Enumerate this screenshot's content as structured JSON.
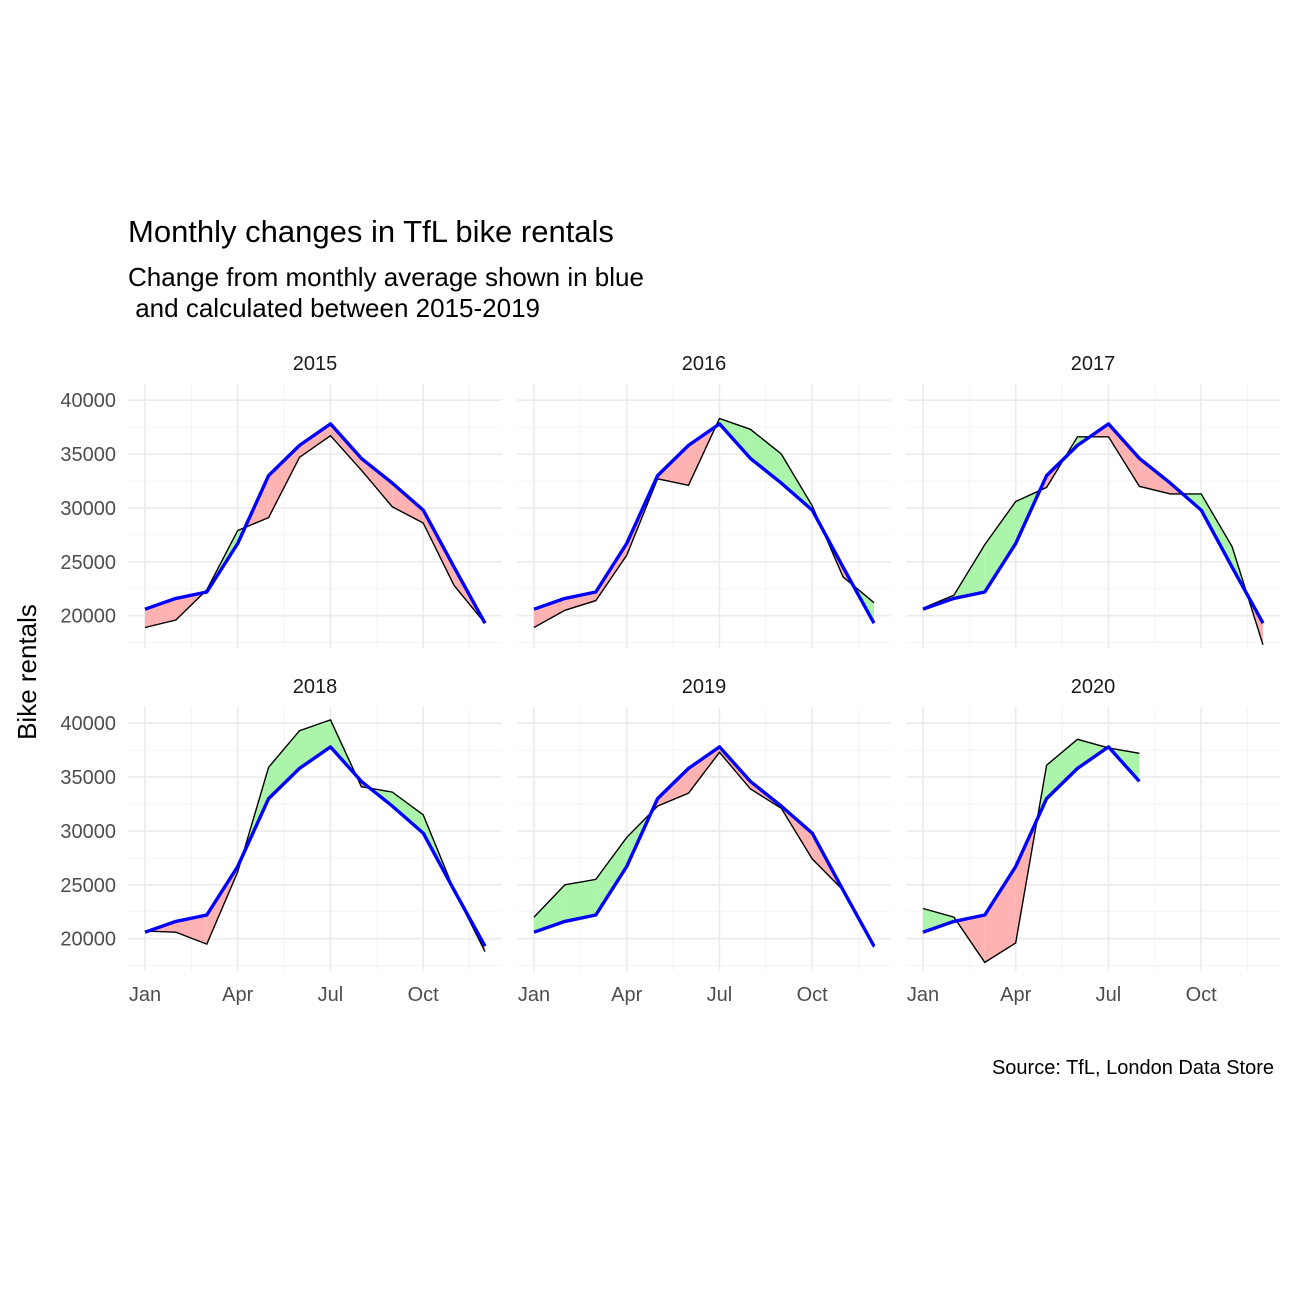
{
  "chart_data": {
    "type": "line",
    "title": "Monthly changes in TfL bike rentals",
    "subtitle": [
      "Change from monthly average shown in blue",
      " and calculated between 2015-2019"
    ],
    "ylabel": "Bike rentals",
    "xlabel": "",
    "caption": "Source: TfL, London Data Store",
    "x_ticks": [
      "Jan",
      "Apr",
      "Jul",
      "Oct"
    ],
    "x_tick_months": [
      1,
      4,
      7,
      10
    ],
    "y_ticks": [
      20000,
      25000,
      30000,
      35000,
      40000
    ],
    "xlim": [
      1,
      12
    ],
    "ylim": [
      17000,
      41500
    ],
    "grid": true,
    "colors": {
      "average_line": "#0000ff",
      "above_average_fill": "#aaf5aa",
      "below_average_fill": "#ffb2b2",
      "actual_line": "#000000"
    },
    "monthly_average": [
      20600,
      21600,
      22200,
      26700,
      33000,
      35800,
      37800,
      34600,
      32300,
      29800,
      24500,
      19300
    ],
    "facets": [
      {
        "year": "2015",
        "values": [
          18900,
          19600,
          22400,
          27900,
          29100,
          34700,
          36700,
          33500,
          30100,
          28600,
          22800,
          19300
        ]
      },
      {
        "year": "2016",
        "values": [
          18900,
          20500,
          21400,
          25600,
          32700,
          32100,
          38300,
          37300,
          35000,
          30200,
          23600,
          21200
        ]
      },
      {
        "year": "2017",
        "values": [
          20700,
          21900,
          26600,
          30600,
          31900,
          36600,
          36600,
          32000,
          31300,
          31300,
          26400,
          17300
        ]
      },
      {
        "year": "2018",
        "values": [
          20700,
          20600,
          19500,
          26200,
          35900,
          39300,
          40300,
          34100,
          33600,
          31500,
          24500,
          18800
        ]
      },
      {
        "year": "2019",
        "values": [
          22000,
          25000,
          25500,
          29400,
          32300,
          33500,
          37300,
          33900,
          32100,
          27400,
          24500,
          19200
        ]
      },
      {
        "year": "2020",
        "values": [
          22800,
          22000,
          17800,
          19600,
          36100,
          38500,
          37700,
          37200
        ]
      }
    ]
  }
}
